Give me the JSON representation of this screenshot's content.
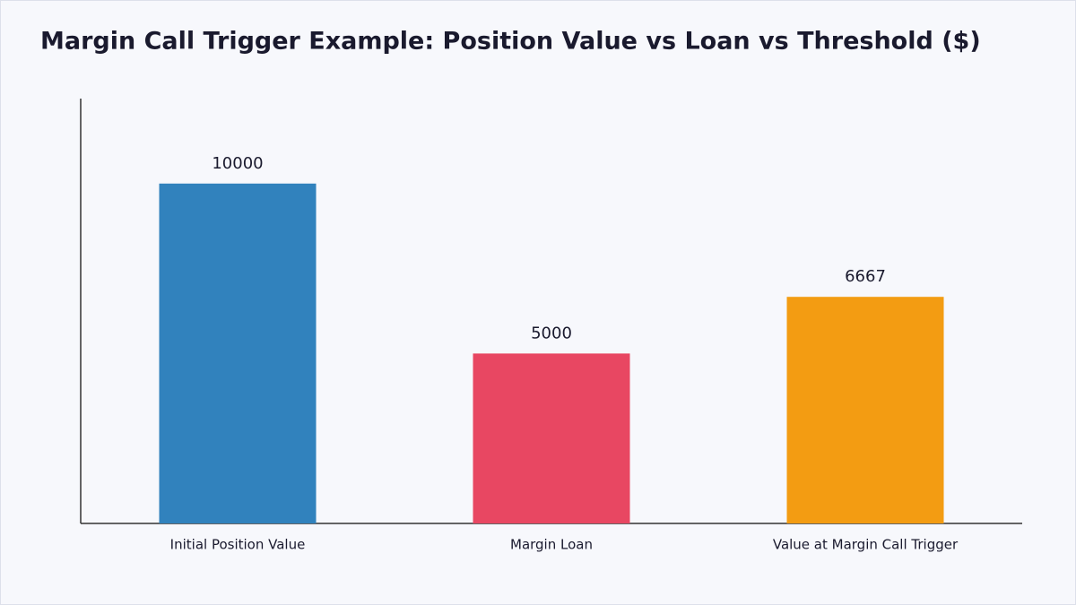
{
  "chart_data": {
    "type": "bar",
    "title": "Margin Call Trigger Example: Position Value vs Loan vs Threshold ($)",
    "categories": [
      "Initial Position Value",
      "Margin Loan",
      "Value at Margin Call Trigger"
    ],
    "values": [
      10000,
      5000,
      6667
    ],
    "colors": [
      "#3182bd",
      "#e84762",
      "#f39c12"
    ],
    "ylim": [
      0,
      12500
    ]
  }
}
